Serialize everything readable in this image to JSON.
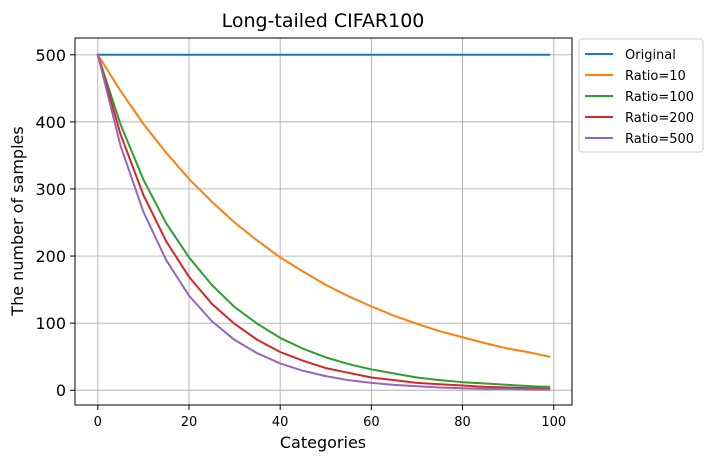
{
  "chart_data": {
    "type": "line",
    "title": "Long-tailed CIFAR100",
    "xlabel": "Categories",
    "ylabel": "The number of samples",
    "xlim": [
      -5,
      104
    ],
    "ylim": [
      -22,
      525
    ],
    "x_ticks": [
      0,
      20,
      40,
      60,
      80,
      100
    ],
    "x_tick_labels": [
      "0",
      "20",
      "40",
      "60",
      "80",
      "100"
    ],
    "y_ticks": [
      0,
      100,
      200,
      300,
      400,
      500
    ],
    "y_tick_labels": [
      "0",
      "100",
      "200",
      "300",
      "400",
      "500"
    ],
    "grid": true,
    "legend_position": "outside-top-right",
    "x": [
      0,
      5,
      10,
      15,
      20,
      25,
      30,
      35,
      40,
      45,
      50,
      55,
      60,
      65,
      70,
      75,
      80,
      85,
      90,
      95,
      99
    ],
    "series": [
      {
        "name": "Original",
        "color": "#1f77b4",
        "values": [
          500,
          500,
          500,
          500,
          500,
          500,
          500,
          500,
          500,
          500,
          500,
          500,
          500,
          500,
          500,
          500,
          500,
          500,
          500,
          500,
          500
        ]
      },
      {
        "name": "Ratio=10",
        "color": "#ff7f0e",
        "values": [
          500,
          446,
          397,
          354,
          315,
          281,
          250,
          223,
          198,
          177,
          157,
          140,
          125,
          111,
          99,
          88,
          79,
          70,
          62,
          56,
          50
        ]
      },
      {
        "name": "Ratio=100",
        "color": "#2ca02c",
        "values": [
          500,
          396,
          314,
          249,
          198,
          157,
          124,
          99,
          78,
          62,
          49,
          39,
          31,
          25,
          19,
          15,
          12,
          10,
          8,
          6,
          5
        ]
      },
      {
        "name": "Ratio=200",
        "color": "#d62728",
        "values": [
          500,
          381,
          291,
          222,
          169,
          129,
          99,
          75,
          57,
          44,
          33,
          26,
          19,
          15,
          11,
          9,
          7,
          5,
          4,
          3,
          2
        ]
      },
      {
        "name": "Ratio=500",
        "color": "#9467bd",
        "values": [
          500,
          364,
          266,
          194,
          141,
          103,
          75,
          55,
          40,
          29,
          21,
          15,
          11,
          8,
          6,
          4,
          3,
          2,
          2,
          1,
          1
        ]
      }
    ]
  }
}
